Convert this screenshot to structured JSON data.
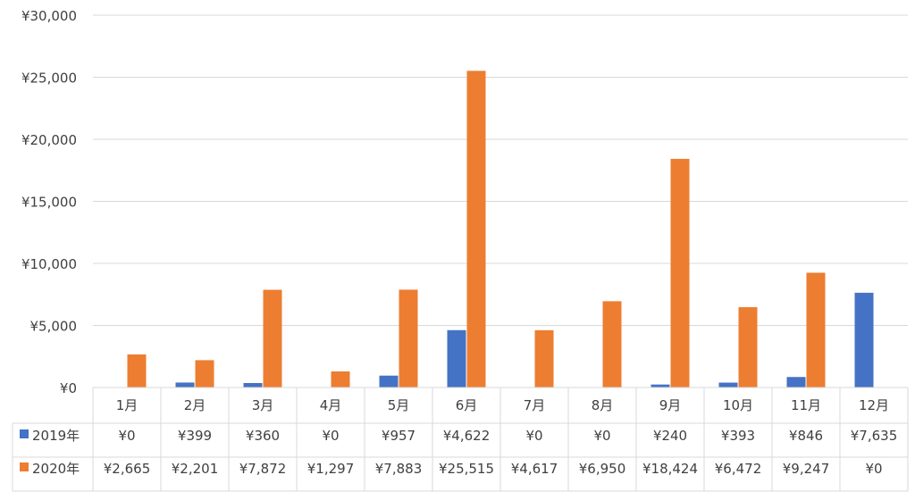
{
  "chart_data": {
    "type": "bar",
    "title": "",
    "xlabel": "",
    "ylabel": "",
    "ylim": [
      0,
      30000
    ],
    "y_ticks": [
      "¥0",
      "¥5,000",
      "¥10,000",
      "¥15,000",
      "¥20,000",
      "¥25,000",
      "¥30,000"
    ],
    "categories": [
      "1月",
      "2月",
      "3月",
      "4月",
      "5月",
      "6月",
      "7月",
      "8月",
      "9月",
      "10月",
      "11月",
      "12月"
    ],
    "grid": true,
    "legend": "data-table",
    "series": [
      {
        "name": "2019年",
        "color": "#4472C4",
        "values": [
          0,
          399,
          360,
          0,
          957,
          4622,
          0,
          0,
          240,
          393,
          846,
          7635
        ],
        "labels": [
          "¥0",
          "¥399",
          "¥360",
          "¥0",
          "¥957",
          "¥4,622",
          "¥0",
          "¥0",
          "¥240",
          "¥393",
          "¥846",
          "¥7,635"
        ]
      },
      {
        "name": "2020年",
        "color": "#ED7D31",
        "values": [
          2665,
          2201,
          7872,
          1297,
          7883,
          25515,
          4617,
          6950,
          18424,
          6472,
          9247,
          0
        ],
        "labels": [
          "¥2,665",
          "¥2,201",
          "¥7,872",
          "¥1,297",
          "¥7,883",
          "¥25,515",
          "¥4,617",
          "¥6,950",
          "¥18,424",
          "¥6,472",
          "¥9,247",
          "¥0"
        ]
      }
    ]
  }
}
